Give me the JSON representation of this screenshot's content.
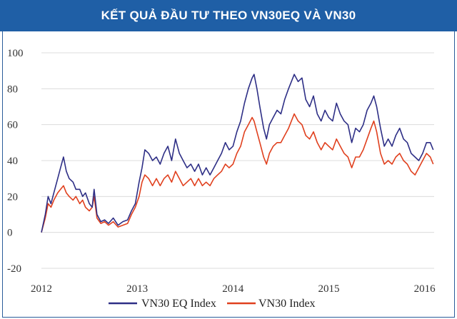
{
  "chart_data": {
    "type": "line",
    "title": "KẾT QUẢ ĐẦU TƯ THEO VN30EQ VÀ VN30",
    "ylim": [
      -20,
      100
    ],
    "yticks": [
      -20,
      0,
      20,
      40,
      60,
      80,
      100
    ],
    "xlim": [
      2012.0,
      2016.1
    ],
    "xticks": [
      2012,
      2013,
      2014,
      2015,
      2016
    ],
    "grid": "horizontal",
    "legend_position": "bottom",
    "series": [
      {
        "name": "VN30 EQ Index",
        "color": "#2e2f86",
        "points": [
          [
            2012.0,
            0
          ],
          [
            2012.04,
            10
          ],
          [
            2012.07,
            20
          ],
          [
            2012.1,
            16
          ],
          [
            2012.13,
            22
          ],
          [
            2012.17,
            30
          ],
          [
            2012.2,
            36
          ],
          [
            2012.23,
            42
          ],
          [
            2012.26,
            34
          ],
          [
            2012.29,
            30
          ],
          [
            2012.33,
            28
          ],
          [
            2012.36,
            24
          ],
          [
            2012.4,
            24
          ],
          [
            2012.43,
            20
          ],
          [
            2012.46,
            22
          ],
          [
            2012.5,
            16
          ],
          [
            2012.53,
            14
          ],
          [
            2012.55,
            24
          ],
          [
            2012.58,
            10
          ],
          [
            2012.62,
            6
          ],
          [
            2012.66,
            7
          ],
          [
            2012.7,
            5
          ],
          [
            2012.75,
            8
          ],
          [
            2012.8,
            4
          ],
          [
            2012.85,
            6
          ],
          [
            2012.9,
            7
          ],
          [
            2012.94,
            12
          ],
          [
            2012.98,
            16
          ],
          [
            2013.02,
            28
          ],
          [
            2013.05,
            36
          ],
          [
            2013.08,
            46
          ],
          [
            2013.12,
            44
          ],
          [
            2013.16,
            40
          ],
          [
            2013.2,
            42
          ],
          [
            2013.24,
            38
          ],
          [
            2013.28,
            44
          ],
          [
            2013.32,
            48
          ],
          [
            2013.36,
            40
          ],
          [
            2013.4,
            52
          ],
          [
            2013.44,
            44
          ],
          [
            2013.48,
            40
          ],
          [
            2013.52,
            36
          ],
          [
            2013.56,
            38
          ],
          [
            2013.6,
            34
          ],
          [
            2013.64,
            38
          ],
          [
            2013.68,
            32
          ],
          [
            2013.72,
            36
          ],
          [
            2013.76,
            32
          ],
          [
            2013.8,
            36
          ],
          [
            2013.84,
            40
          ],
          [
            2013.88,
            44
          ],
          [
            2013.92,
            50
          ],
          [
            2013.96,
            46
          ],
          [
            2014.0,
            48
          ],
          [
            2014.04,
            56
          ],
          [
            2014.08,
            62
          ],
          [
            2014.12,
            72
          ],
          [
            2014.16,
            80
          ],
          [
            2014.2,
            86
          ],
          [
            2014.22,
            88
          ],
          [
            2014.25,
            80
          ],
          [
            2014.28,
            70
          ],
          [
            2014.32,
            58
          ],
          [
            2014.35,
            52
          ],
          [
            2014.38,
            60
          ],
          [
            2014.42,
            64
          ],
          [
            2014.46,
            68
          ],
          [
            2014.5,
            66
          ],
          [
            2014.54,
            74
          ],
          [
            2014.58,
            80
          ],
          [
            2014.61,
            84
          ],
          [
            2014.64,
            88
          ],
          [
            2014.68,
            84
          ],
          [
            2014.72,
            86
          ],
          [
            2014.76,
            74
          ],
          [
            2014.8,
            70
          ],
          [
            2014.84,
            76
          ],
          [
            2014.88,
            66
          ],
          [
            2014.92,
            62
          ],
          [
            2014.96,
            68
          ],
          [
            2015.0,
            64
          ],
          [
            2015.04,
            62
          ],
          [
            2015.08,
            72
          ],
          [
            2015.12,
            66
          ],
          [
            2015.16,
            62
          ],
          [
            2015.2,
            60
          ],
          [
            2015.24,
            50
          ],
          [
            2015.28,
            58
          ],
          [
            2015.32,
            56
          ],
          [
            2015.36,
            60
          ],
          [
            2015.4,
            68
          ],
          [
            2015.44,
            72
          ],
          [
            2015.47,
            76
          ],
          [
            2015.5,
            70
          ],
          [
            2015.54,
            58
          ],
          [
            2015.58,
            48
          ],
          [
            2015.62,
            52
          ],
          [
            2015.66,
            48
          ],
          [
            2015.7,
            54
          ],
          [
            2015.74,
            58
          ],
          [
            2015.78,
            52
          ],
          [
            2015.82,
            50
          ],
          [
            2015.86,
            44
          ],
          [
            2015.9,
            42
          ],
          [
            2015.94,
            40
          ],
          [
            2015.98,
            44
          ],
          [
            2016.02,
            50
          ],
          [
            2016.06,
            50
          ],
          [
            2016.09,
            46
          ]
        ]
      },
      {
        "name": "VN30 Index",
        "color": "#e0401e",
        "points": [
          [
            2012.0,
            0
          ],
          [
            2012.04,
            8
          ],
          [
            2012.07,
            16
          ],
          [
            2012.1,
            14
          ],
          [
            2012.13,
            18
          ],
          [
            2012.17,
            22
          ],
          [
            2012.2,
            24
          ],
          [
            2012.23,
            26
          ],
          [
            2012.26,
            22
          ],
          [
            2012.29,
            20
          ],
          [
            2012.33,
            18
          ],
          [
            2012.36,
            20
          ],
          [
            2012.4,
            16
          ],
          [
            2012.43,
            18
          ],
          [
            2012.46,
            14
          ],
          [
            2012.5,
            12
          ],
          [
            2012.53,
            14
          ],
          [
            2012.55,
            20
          ],
          [
            2012.58,
            8
          ],
          [
            2012.62,
            5
          ],
          [
            2012.66,
            6
          ],
          [
            2012.7,
            4
          ],
          [
            2012.75,
            6
          ],
          [
            2012.8,
            3
          ],
          [
            2012.85,
            4
          ],
          [
            2012.9,
            5
          ],
          [
            2012.94,
            10
          ],
          [
            2012.98,
            14
          ],
          [
            2013.02,
            20
          ],
          [
            2013.05,
            28
          ],
          [
            2013.08,
            32
          ],
          [
            2013.12,
            30
          ],
          [
            2013.16,
            26
          ],
          [
            2013.2,
            30
          ],
          [
            2013.24,
            26
          ],
          [
            2013.28,
            30
          ],
          [
            2013.32,
            32
          ],
          [
            2013.36,
            28
          ],
          [
            2013.4,
            34
          ],
          [
            2013.44,
            30
          ],
          [
            2013.48,
            26
          ],
          [
            2013.52,
            28
          ],
          [
            2013.56,
            30
          ],
          [
            2013.6,
            26
          ],
          [
            2013.64,
            30
          ],
          [
            2013.68,
            26
          ],
          [
            2013.72,
            28
          ],
          [
            2013.76,
            26
          ],
          [
            2013.8,
            30
          ],
          [
            2013.84,
            32
          ],
          [
            2013.88,
            34
          ],
          [
            2013.92,
            38
          ],
          [
            2013.96,
            36
          ],
          [
            2014.0,
            38
          ],
          [
            2014.04,
            44
          ],
          [
            2014.08,
            48
          ],
          [
            2014.12,
            56
          ],
          [
            2014.16,
            60
          ],
          [
            2014.2,
            64
          ],
          [
            2014.22,
            62
          ],
          [
            2014.25,
            56
          ],
          [
            2014.28,
            50
          ],
          [
            2014.32,
            42
          ],
          [
            2014.35,
            38
          ],
          [
            2014.38,
            44
          ],
          [
            2014.42,
            48
          ],
          [
            2014.46,
            50
          ],
          [
            2014.5,
            50
          ],
          [
            2014.54,
            54
          ],
          [
            2014.58,
            58
          ],
          [
            2014.61,
            62
          ],
          [
            2014.64,
            66
          ],
          [
            2014.68,
            62
          ],
          [
            2014.72,
            60
          ],
          [
            2014.76,
            54
          ],
          [
            2014.8,
            52
          ],
          [
            2014.84,
            56
          ],
          [
            2014.88,
            50
          ],
          [
            2014.92,
            46
          ],
          [
            2014.96,
            50
          ],
          [
            2015.0,
            48
          ],
          [
            2015.04,
            46
          ],
          [
            2015.08,
            52
          ],
          [
            2015.12,
            48
          ],
          [
            2015.16,
            44
          ],
          [
            2015.2,
            42
          ],
          [
            2015.24,
            36
          ],
          [
            2015.28,
            42
          ],
          [
            2015.32,
            42
          ],
          [
            2015.36,
            46
          ],
          [
            2015.4,
            52
          ],
          [
            2015.44,
            58
          ],
          [
            2015.47,
            62
          ],
          [
            2015.5,
            56
          ],
          [
            2015.54,
            44
          ],
          [
            2015.58,
            38
          ],
          [
            2015.62,
            40
          ],
          [
            2015.66,
            38
          ],
          [
            2015.7,
            42
          ],
          [
            2015.74,
            44
          ],
          [
            2015.78,
            40
          ],
          [
            2015.82,
            38
          ],
          [
            2015.86,
            34
          ],
          [
            2015.9,
            32
          ],
          [
            2015.94,
            36
          ],
          [
            2015.98,
            40
          ],
          [
            2016.02,
            44
          ],
          [
            2016.06,
            42
          ],
          [
            2016.09,
            38
          ]
        ]
      }
    ]
  }
}
